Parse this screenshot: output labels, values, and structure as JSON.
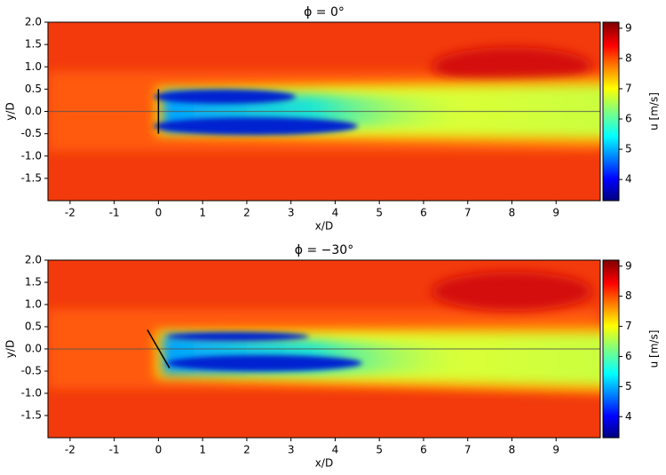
{
  "chart_data": [
    {
      "type": "heatmap",
      "title": "ϕ = 0°",
      "xlabel": "x/D",
      "ylabel": "y/D",
      "xlim": [
        -2.5,
        10
      ],
      "ylim": [
        -2,
        2
      ],
      "xticks": [
        -2,
        -1,
        0,
        1,
        2,
        3,
        4,
        5,
        6,
        7,
        8,
        9
      ],
      "yticks": [
        -1.5,
        {
          "value": -1,
          "label": "-1.0"
        },
        -0.5,
        {
          "value": 0,
          "label": "0.0"
        },
        0.5,
        {
          "value": 1,
          "label": "1.0"
        },
        1.5,
        {
          "value": 2,
          "label": "2.0"
        }
      ],
      "colorbar": {
        "label": "u [m/s]",
        "clim": [
          3.3,
          9.2
        ],
        "ticks": [
          4,
          5,
          6,
          7,
          8,
          9
        ],
        "colormap": "jet"
      },
      "turbine": {
        "x": [
          0,
          0
        ],
        "y": [
          -0.5,
          0.5
        ]
      }
    },
    {
      "type": "heatmap",
      "title": "ϕ = −30°",
      "xlabel": "x/D",
      "ylabel": "y/D",
      "xlim": [
        -2.5,
        10
      ],
      "ylim": [
        -2,
        2
      ],
      "xticks": [
        -2,
        -1,
        0,
        1,
        2,
        3,
        4,
        5,
        6,
        7,
        8,
        9
      ],
      "yticks": [
        -1.5,
        {
          "value": -1,
          "label": "-1.0"
        },
        -0.5,
        {
          "value": 0,
          "label": "0.0"
        },
        0.5,
        {
          "value": 1,
          "label": "1.0"
        },
        1.5,
        {
          "value": 2,
          "label": "2.0"
        }
      ],
      "colorbar": {
        "label": "u [m/s]",
        "clim": [
          3.3,
          9.2
        ],
        "ticks": [
          4,
          5,
          6,
          7,
          8,
          9
        ],
        "colormap": "jet"
      },
      "turbine": {
        "x": [
          -0.25,
          0.25
        ],
        "y": [
          0.43,
          -0.43
        ]
      }
    }
  ]
}
